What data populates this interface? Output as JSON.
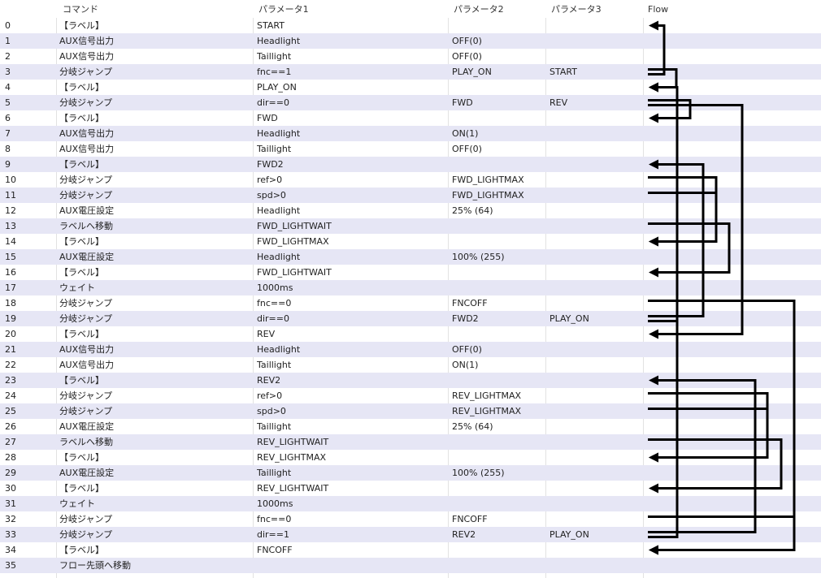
{
  "headers": {
    "no": "",
    "command": "コマンド",
    "param1": "パラメータ1",
    "param2": "パラメータ2",
    "param3": "パラメータ3",
    "flow": "Flow"
  },
  "rows": [
    {
      "no": "0",
      "cmd": "【ラベル】",
      "p1": "START",
      "p2": "",
      "p3": ""
    },
    {
      "no": "1",
      "cmd": "AUX信号出力",
      "p1": "Headlight",
      "p2": "OFF(0)",
      "p3": ""
    },
    {
      "no": "2",
      "cmd": "AUX信号出力",
      "p1": "Taillight",
      "p2": "OFF(0)",
      "p3": ""
    },
    {
      "no": "3",
      "cmd": "分岐ジャンプ",
      "p1": "fnc==1",
      "p2": "PLAY_ON",
      "p3": "START"
    },
    {
      "no": "4",
      "cmd": "【ラベル】",
      "p1": "PLAY_ON",
      "p2": "",
      "p3": ""
    },
    {
      "no": "5",
      "cmd": "分岐ジャンプ",
      "p1": "dir==0",
      "p2": "FWD",
      "p3": "REV"
    },
    {
      "no": "6",
      "cmd": "【ラベル】",
      "p1": "FWD",
      "p2": "",
      "p3": ""
    },
    {
      "no": "7",
      "cmd": "AUX信号出力",
      "p1": "Headlight",
      "p2": "ON(1)",
      "p3": ""
    },
    {
      "no": "8",
      "cmd": "AUX信号出力",
      "p1": "Taillight",
      "p2": "OFF(0)",
      "p3": ""
    },
    {
      "no": "9",
      "cmd": "【ラベル】",
      "p1": "FWD2",
      "p2": "",
      "p3": ""
    },
    {
      "no": "10",
      "cmd": "分岐ジャンプ",
      "p1": "ref>0",
      "p2": "FWD_LIGHTMAX",
      "p3": ""
    },
    {
      "no": "11",
      "cmd": "分岐ジャンプ",
      "p1": "spd>0",
      "p2": "FWD_LIGHTMAX",
      "p3": ""
    },
    {
      "no": "12",
      "cmd": "AUX電圧設定",
      "p1": "Headlight",
      "p2": "25% (64)",
      "p3": ""
    },
    {
      "no": "13",
      "cmd": "ラベルへ移動",
      "p1": "FWD_LIGHTWAIT",
      "p2": "",
      "p3": ""
    },
    {
      "no": "14",
      "cmd": "【ラベル】",
      "p1": "FWD_LIGHTMAX",
      "p2": "",
      "p3": ""
    },
    {
      "no": "15",
      "cmd": "AUX電圧設定",
      "p1": "Headlight",
      "p2": "100% (255)",
      "p3": ""
    },
    {
      "no": "16",
      "cmd": "【ラベル】",
      "p1": "FWD_LIGHTWAIT",
      "p2": "",
      "p3": ""
    },
    {
      "no": "17",
      "cmd": "ウェイト",
      "p1": "1000ms",
      "p2": "",
      "p3": ""
    },
    {
      "no": "18",
      "cmd": "分岐ジャンプ",
      "p1": "fnc==0",
      "p2": "FNCOFF",
      "p3": ""
    },
    {
      "no": "19",
      "cmd": "分岐ジャンプ",
      "p1": "dir==0",
      "p2": "FWD2",
      "p3": "PLAY_ON"
    },
    {
      "no": "20",
      "cmd": "【ラベル】",
      "p1": "REV",
      "p2": "",
      "p3": ""
    },
    {
      "no": "21",
      "cmd": "AUX信号出力",
      "p1": "Headlight",
      "p2": "OFF(0)",
      "p3": ""
    },
    {
      "no": "22",
      "cmd": "AUX信号出力",
      "p1": "Taillight",
      "p2": "ON(1)",
      "p3": ""
    },
    {
      "no": "23",
      "cmd": "【ラベル】",
      "p1": "REV2",
      "p2": "",
      "p3": ""
    },
    {
      "no": "24",
      "cmd": "分岐ジャンプ",
      "p1": "ref>0",
      "p2": "REV_LIGHTMAX",
      "p3": ""
    },
    {
      "no": "25",
      "cmd": "分岐ジャンプ",
      "p1": "spd>0",
      "p2": "REV_LIGHTMAX",
      "p3": ""
    },
    {
      "no": "26",
      "cmd": "AUX電圧設定",
      "p1": "Taillight",
      "p2": "25% (64)",
      "p3": ""
    },
    {
      "no": "27",
      "cmd": "ラベルへ移動",
      "p1": "REV_LIGHTWAIT",
      "p2": "",
      "p3": ""
    },
    {
      "no": "28",
      "cmd": "【ラベル】",
      "p1": "REV_LIGHTMAX",
      "p2": "",
      "p3": ""
    },
    {
      "no": "29",
      "cmd": "AUX電圧設定",
      "p1": "Taillight",
      "p2": "100% (255)",
      "p3": ""
    },
    {
      "no": "30",
      "cmd": "【ラベル】",
      "p1": "REV_LIGHTWAIT",
      "p2": "",
      "p3": ""
    },
    {
      "no": "31",
      "cmd": "ウェイト",
      "p1": "1000ms",
      "p2": "",
      "p3": ""
    },
    {
      "no": "32",
      "cmd": "分岐ジャンプ",
      "p1": "fnc==0",
      "p2": "FNCOFF",
      "p3": ""
    },
    {
      "no": "33",
      "cmd": "分岐ジャンプ",
      "p1": "dir==1",
      "p2": "REV2",
      "p3": "PLAY_ON"
    },
    {
      "no": "34",
      "cmd": "【ラベル】",
      "p1": "FNCOFF",
      "p2": "",
      "p3": ""
    },
    {
      "no": "35",
      "cmd": "フロー先頭へ移動",
      "p1": "",
      "p2": "",
      "p3": ""
    }
  ],
  "flow": {
    "color": "#000000",
    "jumps": [
      {
        "from": 3,
        "to": 4,
        "lane": 1
      },
      {
        "from": 3,
        "to": 0,
        "lane": 0
      },
      {
        "from": 5,
        "to": 6,
        "lane": 3
      },
      {
        "from": 5,
        "to": 20,
        "lane": 7
      },
      {
        "from": 10,
        "to": 14,
        "lane": 5
      },
      {
        "from": 11,
        "to": 14,
        "lane": 5
      },
      {
        "from": 13,
        "to": 16,
        "lane": 6
      },
      {
        "from": 18,
        "to": 34,
        "lane": 11
      },
      {
        "from": 19,
        "to": 9,
        "lane": 4
      },
      {
        "from": 19,
        "to": 4,
        "lane": 2
      },
      {
        "from": 24,
        "to": 28,
        "lane": 9
      },
      {
        "from": 25,
        "to": 28,
        "lane": 9
      },
      {
        "from": 27,
        "to": 30,
        "lane": 10
      },
      {
        "from": 32,
        "to": 34,
        "lane": 11
      },
      {
        "from": 33,
        "to": 23,
        "lane": 8
      },
      {
        "from": 33,
        "to": 4,
        "lane": 2
      }
    ]
  }
}
